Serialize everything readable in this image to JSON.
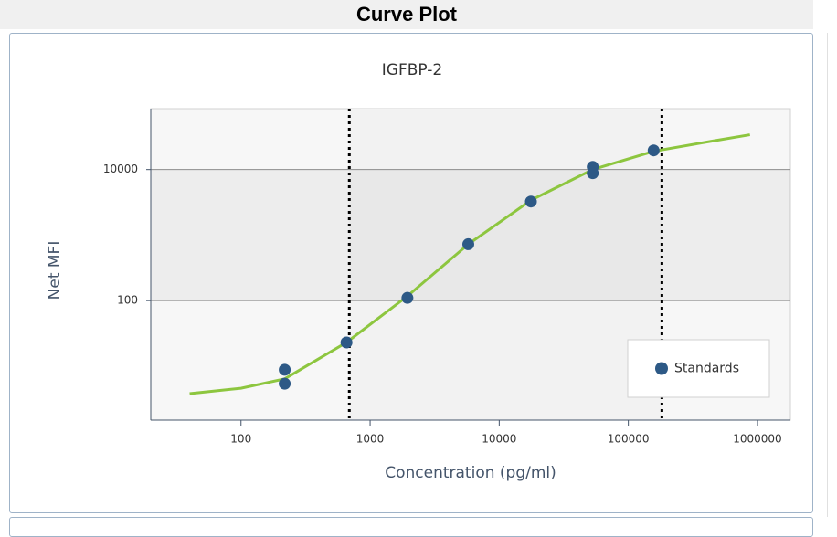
{
  "header": {
    "title": "Curve Plot"
  },
  "chart_data": {
    "type": "scatter",
    "title": "IGFBP-2",
    "x_label": "Concentration (pg/ml)",
    "y_label": "Net MFI",
    "xscale": "log",
    "yscale": "log",
    "xlim": [
      20,
      1800000
    ],
    "ylim": [
      1.5,
      85000
    ],
    "xticks": [
      100,
      1000,
      10000,
      100000,
      1000000
    ],
    "yticks": [
      100,
      10000
    ],
    "grid": true,
    "legend": "lower right",
    "series": [
      {
        "name": "Standards",
        "color": "#2d5986",
        "x": [
          218,
          218,
          656,
          1945,
          5760,
          17600,
          53000,
          53000,
          157000
        ],
        "values": [
          8.8,
          5.4,
          23,
          110,
          725,
          3250,
          11000,
          8800,
          19600
        ]
      }
    ],
    "curve": {
      "color": "#8dc63f",
      "x": [
        40,
        100,
        218,
        656,
        1945,
        5760,
        17600,
        53000,
        157000,
        436000,
        875000
      ],
      "values": [
        3.8,
        4.6,
        6.4,
        23,
        117,
        725,
        3400,
        10000,
        19000,
        27000,
        34000
      ]
    },
    "range_lines": [
      690,
      182000
    ]
  }
}
